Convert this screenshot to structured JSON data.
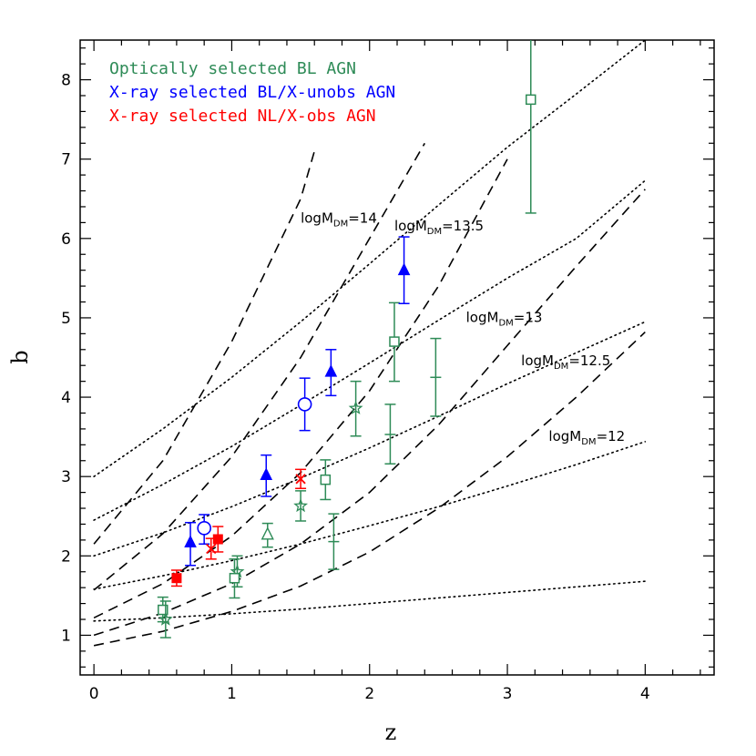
{
  "chart_data": {
    "type": "scatter",
    "title": "",
    "xlabel": "z",
    "ylabel": "b",
    "xlim": [
      -0.1,
      4.5
    ],
    "ylim": [
      0.5,
      8.5
    ],
    "xticks": [
      "0",
      "1",
      "2",
      "3",
      "4"
    ],
    "yticks": [
      "1",
      "2",
      "3",
      "4",
      "5",
      "6",
      "7",
      "8"
    ],
    "grid": false,
    "legend_position": "top-left",
    "colors": {
      "green": "#2e8b57",
      "blue": "#0000ff",
      "red": "#ff0000",
      "black": "#000000"
    },
    "legend": [
      {
        "label": "Optically selected BL AGN",
        "color": "#2e8b57"
      },
      {
        "label": "X-ray selected BL/X-unobs AGN",
        "color": "#0000ff"
      },
      {
        "label": "X-ray selected NL/X-obs AGN",
        "color": "#ff0000"
      }
    ],
    "dotted_curves": [
      {
        "points": [
          [
            0,
            1.18
          ],
          [
            0.5,
            1.22
          ],
          [
            1,
            1.27
          ],
          [
            1.5,
            1.33
          ],
          [
            2,
            1.4
          ],
          [
            2.5,
            1.47
          ],
          [
            3,
            1.54
          ],
          [
            3.5,
            1.61
          ],
          [
            4,
            1.68
          ]
        ]
      },
      {
        "points": [
          [
            0,
            1.58
          ],
          [
            0.5,
            1.75
          ],
          [
            1,
            1.94
          ],
          [
            1.5,
            2.15
          ],
          [
            2,
            2.38
          ],
          [
            2.5,
            2.62
          ],
          [
            3,
            2.88
          ],
          [
            3.5,
            3.15
          ],
          [
            4,
            3.44
          ]
        ]
      },
      {
        "points": [
          [
            0,
            2.0
          ],
          [
            0.5,
            2.29
          ],
          [
            1,
            2.62
          ],
          [
            1.5,
            2.98
          ],
          [
            2,
            3.36
          ],
          [
            2.5,
            3.76
          ],
          [
            3,
            4.17
          ],
          [
            3.5,
            4.56
          ],
          [
            4,
            4.95
          ]
        ]
      },
      {
        "points": [
          [
            0,
            2.45
          ],
          [
            0.5,
            2.9
          ],
          [
            1,
            3.38
          ],
          [
            1.5,
            3.9
          ],
          [
            2,
            4.43
          ],
          [
            2.5,
            4.97
          ],
          [
            3,
            5.5
          ],
          [
            3.5,
            6.0
          ],
          [
            4,
            6.73
          ]
        ]
      },
      {
        "points": [
          [
            0,
            3.0
          ],
          [
            0.5,
            3.6
          ],
          [
            1,
            4.25
          ],
          [
            1.5,
            4.95
          ],
          [
            2,
            5.68
          ],
          [
            2.5,
            6.42
          ],
          [
            3,
            7.15
          ],
          [
            3.5,
            7.82
          ],
          [
            4,
            8.5
          ]
        ]
      }
    ],
    "dashed_curves": [
      {
        "points": [
          [
            0,
            0.87
          ],
          [
            0.5,
            1.05
          ],
          [
            1,
            1.3
          ],
          [
            1.5,
            1.62
          ],
          [
            2,
            2.05
          ],
          [
            2.5,
            2.6
          ],
          [
            3,
            3.25
          ],
          [
            3.5,
            4.0
          ],
          [
            4,
            4.82
          ]
        ]
      },
      {
        "points": [
          [
            0,
            1.0
          ],
          [
            0.5,
            1.28
          ],
          [
            1,
            1.65
          ],
          [
            1.5,
            2.15
          ],
          [
            2,
            2.8
          ],
          [
            2.5,
            3.65
          ],
          [
            3,
            4.65
          ],
          [
            3.5,
            5.65
          ],
          [
            4,
            6.62
          ]
        ]
      },
      {
        "points": [
          [
            0,
            1.22
          ],
          [
            0.5,
            1.65
          ],
          [
            1,
            2.25
          ],
          [
            1.5,
            3.05
          ],
          [
            2,
            4.08
          ],
          [
            2.5,
            5.4
          ],
          [
            3,
            7.0
          ]
        ]
      },
      {
        "points": [
          [
            0,
            1.57
          ],
          [
            0.5,
            2.28
          ],
          [
            1,
            3.25
          ],
          [
            1.5,
            4.5
          ],
          [
            2,
            6.0
          ],
          [
            2.4,
            7.2
          ]
        ]
      },
      {
        "points": [
          [
            0,
            2.15
          ],
          [
            0.5,
            3.2
          ],
          [
            1,
            4.7
          ],
          [
            1.5,
            6.5
          ],
          [
            1.6,
            7.1
          ]
        ]
      }
    ],
    "mass_labels": [
      {
        "text": "logM",
        "sub": "DM",
        "value": "=14",
        "x": 1.5,
        "y": 6.2
      },
      {
        "text": "logM",
        "sub": "DM",
        "value": "=13.5",
        "x": 2.18,
        "y": 6.1
      },
      {
        "text": "logM",
        "sub": "DM",
        "value": "=13",
        "x": 2.7,
        "y": 4.95
      },
      {
        "text": "logM",
        "sub": "DM",
        "value": "=12.5",
        "x": 3.1,
        "y": 4.4
      },
      {
        "text": "logM",
        "sub": "DM",
        "value": "=12",
        "x": 3.3,
        "y": 3.45
      }
    ],
    "points": [
      {
        "x": 0.5,
        "y": 1.32,
        "ylo": 1.17,
        "yhi": 1.48,
        "marker": "square",
        "color": "green"
      },
      {
        "x": 0.52,
        "y": 1.2,
        "ylo": 0.97,
        "yhi": 1.43,
        "marker": "star",
        "color": "green"
      },
      {
        "x": 1.04,
        "y": 1.8,
        "ylo": 1.61,
        "yhi": 2.0,
        "marker": "star",
        "color": "green"
      },
      {
        "x": 1.02,
        "y": 1.72,
        "ylo": 1.47,
        "yhi": 1.96,
        "marker": "square",
        "color": "green"
      },
      {
        "x": 1.26,
        "y": 2.27,
        "ylo": 2.11,
        "yhi": 2.41,
        "marker": "triangle-open",
        "color": "green"
      },
      {
        "x": 1.5,
        "y": 2.63,
        "ylo": 2.44,
        "yhi": 2.82,
        "marker": "star",
        "color": "green"
      },
      {
        "x": 1.68,
        "y": 2.96,
        "ylo": 2.71,
        "yhi": 3.21,
        "marker": "square",
        "color": "green"
      },
      {
        "x": 1.74,
        "y": 2.18,
        "ylo": 1.83,
        "yhi": 2.53,
        "marker": "bar",
        "color": "green"
      },
      {
        "x": 1.9,
        "y": 3.86,
        "ylo": 3.51,
        "yhi": 4.2,
        "marker": "star",
        "color": "green"
      },
      {
        "x": 2.15,
        "y": 3.53,
        "ylo": 3.16,
        "yhi": 3.91,
        "marker": "bar",
        "color": "green"
      },
      {
        "x": 2.18,
        "y": 4.7,
        "ylo": 4.2,
        "yhi": 5.19,
        "marker": "square",
        "color": "green"
      },
      {
        "x": 2.48,
        "y": 4.25,
        "ylo": 3.76,
        "yhi": 4.74,
        "marker": "bar",
        "color": "green"
      },
      {
        "x": 3.17,
        "y": 7.75,
        "ylo": 6.32,
        "yhi": 8.5,
        "marker": "square",
        "color": "green"
      },
      {
        "x": 0.7,
        "y": 2.17,
        "ylo": 1.88,
        "yhi": 2.42,
        "marker": "triangle-filled",
        "color": "blue"
      },
      {
        "x": 0.8,
        "y": 2.35,
        "ylo": 2.15,
        "yhi": 2.52,
        "marker": "circle-open",
        "color": "blue"
      },
      {
        "x": 1.25,
        "y": 3.02,
        "ylo": 2.75,
        "yhi": 3.27,
        "marker": "triangle-filled",
        "color": "blue"
      },
      {
        "x": 1.53,
        "y": 3.91,
        "ylo": 3.58,
        "yhi": 4.24,
        "marker": "circle-open",
        "color": "blue"
      },
      {
        "x": 1.72,
        "y": 4.32,
        "ylo": 4.02,
        "yhi": 4.6,
        "marker": "triangle-filled",
        "color": "blue"
      },
      {
        "x": 2.25,
        "y": 5.6,
        "ylo": 5.18,
        "yhi": 6.02,
        "marker": "triangle-filled",
        "color": "blue"
      },
      {
        "x": 0.6,
        "y": 1.72,
        "ylo": 1.62,
        "yhi": 1.82,
        "marker": "square-filled",
        "color": "red"
      },
      {
        "x": 0.85,
        "y": 2.09,
        "ylo": 1.96,
        "yhi": 2.22,
        "marker": "cross",
        "color": "red"
      },
      {
        "x": 0.9,
        "y": 2.21,
        "ylo": 2.05,
        "yhi": 2.37,
        "marker": "square-filled",
        "color": "red"
      },
      {
        "x": 1.5,
        "y": 2.97,
        "ylo": 2.85,
        "yhi": 3.09,
        "marker": "cross",
        "color": "red"
      }
    ]
  }
}
